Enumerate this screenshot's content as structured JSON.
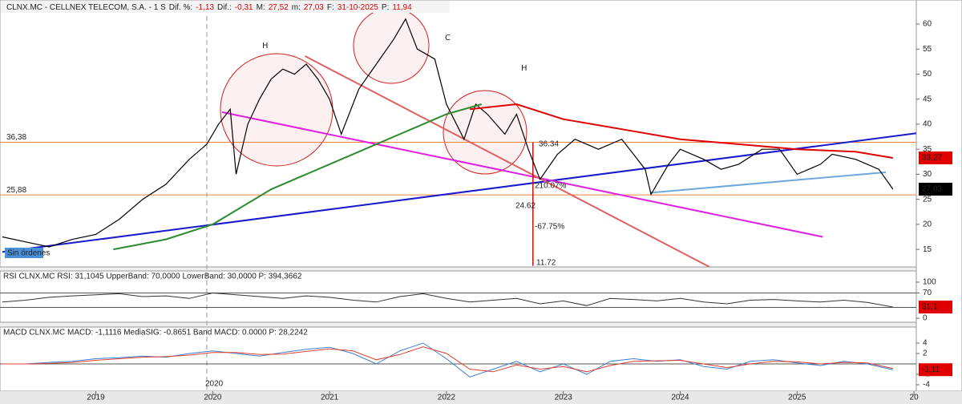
{
  "chart_data": [
    {
      "type": "line",
      "title": "CLNX.MC - CELLNEX TELECOM, S.A. - 1 S",
      "header_fields": [
        {
          "label": "Dif. %:",
          "value": "-1,13"
        },
        {
          "label": "Dif.:",
          "value": "-0,31"
        },
        {
          "label": "M:",
          "value": "27,52"
        },
        {
          "label": "m:",
          "value": "27,03"
        },
        {
          "label": "F:",
          "value": "31-10-2025"
        },
        {
          "label": "P:",
          "value": "11,94"
        }
      ],
      "xlim": [
        2018.18,
        2026.02
      ],
      "xticks": [
        2019,
        2020,
        2021,
        2022,
        2023,
        2024,
        2025,
        {
          "value": 2026,
          "label": "20"
        }
      ],
      "ylim": [
        11.5,
        64.8
      ],
      "yticks": [
        15,
        20,
        25,
        30,
        35,
        40,
        45,
        50,
        55,
        60
      ],
      "series": [
        {
          "color": "#000000",
          "x": [
            2018.2,
            2018.4,
            2018.6,
            2018.8,
            2019.0,
            2019.2,
            2019.4,
            2019.6,
            2019.8,
            2019.95,
            2020.05,
            2020.15,
            2020.2,
            2020.3,
            2020.4,
            2020.5,
            2020.6,
            2020.7,
            2020.8,
            2020.9,
            2021.0,
            2021.1,
            2021.25,
            2021.4,
            2021.55,
            2021.65,
            2021.75,
            2021.9,
            2022.0,
            2022.15,
            2022.25,
            2022.35,
            2022.5,
            2022.6,
            2022.7,
            2022.8,
            2022.95,
            2023.1,
            2023.3,
            2023.5,
            2023.6,
            2023.7,
            2023.75,
            2023.9,
            2024.0,
            2024.2,
            2024.35,
            2024.5,
            2024.7,
            2024.85,
            2025.0,
            2025.2,
            2025.3,
            2025.5,
            2025.7,
            2025.82
          ],
          "values": [
            17.5,
            16.5,
            15.5,
            17,
            18,
            21,
            25,
            28,
            33,
            36,
            40,
            43,
            30,
            40,
            45,
            49,
            51,
            50,
            52,
            49,
            45,
            38,
            47,
            52,
            57,
            61,
            55,
            53,
            44,
            37,
            44,
            42,
            38,
            42,
            35,
            29,
            34,
            37,
            35,
            37,
            34,
            31,
            26,
            32,
            35,
            33,
            31,
            32,
            35,
            35,
            30,
            32,
            34,
            33,
            31,
            27.03
          ]
        },
        {
          "color": "#2e8b2e",
          "x": [
            2019.15,
            2019.6,
            2020.0,
            2020.5,
            2021.0,
            2021.5,
            2022.0,
            2022.3
          ],
          "values": [
            15,
            17,
            20,
            27,
            32,
            37,
            42,
            44
          ]
        },
        {
          "color": "#e00000",
          "x": [
            2022.2,
            2022.6,
            2023.0,
            2023.5,
            2024.0,
            2024.5,
            2025.0,
            2025.5,
            2025.82
          ],
          "values": [
            43,
            44,
            41,
            39,
            37,
            36,
            35,
            34.5,
            33.27
          ]
        }
      ],
      "trendlines": [
        {
          "color": "#1a1acc",
          "x": [
            2018.2,
            2026.02
          ],
          "values": [
            14.5,
            38.2
          ]
        },
        {
          "color": "#e020e0",
          "x": [
            2020.08,
            2025.22
          ],
          "values": [
            42.4,
            17.5
          ]
        },
        {
          "color": "#e06060",
          "x": [
            2020.79,
            2024.25
          ],
          "values": [
            53.6,
            11.5
          ]
        },
        {
          "color": "#6fa8dc",
          "x": [
            2023.74,
            2025.76
          ],
          "values": [
            26.3,
            30.4
          ]
        },
        {
          "color": "#e00000",
          "x": [
            2022.74,
            2022.74
          ],
          "values": [
            36.34,
            11.72
          ]
        }
      ],
      "hlines": [
        {
          "value": 36.38,
          "label": "36,38",
          "color": "#f08040"
        },
        {
          "value": 25.88,
          "label": "25,88",
          "color": "#f08040"
        }
      ],
      "last_labels": [
        {
          "value": 33.27,
          "label": "33,27",
          "color": "#e00000"
        },
        {
          "value": 27.03,
          "label": "27,03",
          "color": "#000000"
        }
      ],
      "annotations": [
        "H",
        "C",
        "H",
        "36.34",
        "210.07%",
        "24.62",
        "-67.75%",
        "11.72"
      ],
      "order_label": "Sin órdenes"
    },
    {
      "type": "line",
      "title": "RSI CLNX.MC RSI: 31,1045 UpperBand: 70,0000 LowerBand: 30,0000 P: 394,3662",
      "xlim": [
        2018.18,
        2026.02
      ],
      "ylim": [
        -11,
        131
      ],
      "yticks": [
        0,
        70,
        100
      ],
      "series": [
        {
          "color": "#333333",
          "x": [
            2018.2,
            2018.4,
            2018.6,
            2018.8,
            2019.0,
            2019.2,
            2019.4,
            2019.6,
            2019.8,
            2020.0,
            2020.2,
            2020.4,
            2020.6,
            2020.8,
            2021.0,
            2021.2,
            2021.4,
            2021.6,
            2021.8,
            2022.0,
            2022.2,
            2022.4,
            2022.6,
            2022.8,
            2023.0,
            2023.2,
            2023.4,
            2023.6,
            2023.8,
            2024.0,
            2024.2,
            2024.4,
            2024.6,
            2024.8,
            2025.0,
            2025.2,
            2025.4,
            2025.6,
            2025.82
          ],
          "values": [
            45,
            50,
            58,
            62,
            65,
            68,
            60,
            62,
            55,
            70,
            65,
            60,
            55,
            62,
            58,
            50,
            45,
            60,
            68,
            55,
            45,
            50,
            55,
            40,
            48,
            35,
            55,
            52,
            48,
            55,
            45,
            40,
            50,
            52,
            48,
            45,
            50,
            44,
            31.1
          ]
        }
      ],
      "hlines": [
        {
          "value": 70,
          "color": "#555555"
        },
        {
          "value": 30,
          "color": "#555555"
        }
      ],
      "last_labels": [
        {
          "value": 31.1,
          "label": "31,1",
          "color": "#e00000"
        }
      ]
    },
    {
      "type": "line",
      "title": "MACD CLNX.MC MACD: -1,1116 MediaSIG: -0.8651 Band MACD: 0.0000 P: 28,2242",
      "xlim": [
        2018.18,
        2026.02
      ],
      "ylim": [
        -5.23,
        7.08
      ],
      "yticks": [
        -4,
        -2,
        2,
        4
      ],
      "series": [
        {
          "color": "#3a7fd5",
          "x": [
            2018.2,
            2018.4,
            2018.6,
            2018.8,
            2019.0,
            2019.2,
            2019.4,
            2019.6,
            2019.8,
            2020.0,
            2020.2,
            2020.4,
            2020.6,
            2020.8,
            2021.0,
            2021.2,
            2021.4,
            2021.6,
            2021.8,
            2022.0,
            2022.2,
            2022.4,
            2022.6,
            2022.8,
            2023.0,
            2023.2,
            2023.4,
            2023.6,
            2023.8,
            2024.0,
            2024.2,
            2024.4,
            2024.6,
            2024.8,
            2025.0,
            2025.2,
            2025.4,
            2025.6,
            2025.82
          ],
          "values": [
            0,
            0,
            0.3,
            0.5,
            1,
            1.2,
            1.5,
            1.3,
            2,
            2.5,
            2,
            1.5,
            2.2,
            2.8,
            3.2,
            2,
            0,
            2.5,
            4,
            1,
            -2.5,
            -1,
            0.5,
            -1.5,
            0,
            -2,
            0.5,
            1,
            0.5,
            0.8,
            -0.5,
            -1,
            0.5,
            0.8,
            0.2,
            -0.3,
            0.5,
            0,
            -1.11
          ]
        },
        {
          "color": "#e04030",
          "x": [
            2018.2,
            2018.4,
            2018.6,
            2018.8,
            2019.0,
            2019.2,
            2019.4,
            2019.6,
            2019.8,
            2020.0,
            2020.2,
            2020.4,
            2020.6,
            2020.8,
            2021.0,
            2021.2,
            2021.4,
            2021.6,
            2021.8,
            2022.0,
            2022.2,
            2022.4,
            2022.6,
            2022.8,
            2023.0,
            2023.2,
            2023.4,
            2023.6,
            2023.8,
            2024.0,
            2024.2,
            2024.4,
            2024.6,
            2024.8,
            2025.0,
            2025.2,
            2025.4,
            2025.6,
            2025.82
          ],
          "values": [
            0,
            0,
            0.1,
            0.3,
            0.7,
            1,
            1.3,
            1.4,
            1.7,
            2.2,
            2.2,
            1.8,
            1.9,
            2.4,
            2.9,
            2.5,
            0.8,
            1.8,
            3.3,
            2,
            -1,
            -1.5,
            -0.2,
            -1,
            -0.5,
            -1.5,
            -0.3,
            0.5,
            0.6,
            0.7,
            0,
            -0.7,
            0,
            0.5,
            0.4,
            0,
            0.3,
            0.2,
            -0.87
          ]
        }
      ],
      "hlines": [
        {
          "value": 0,
          "color": "#555555"
        }
      ],
      "last_labels": [
        {
          "value": -1.11,
          "label": "-1,11",
          "color": "#e00000"
        }
      ],
      "marker_label": "2020"
    }
  ]
}
